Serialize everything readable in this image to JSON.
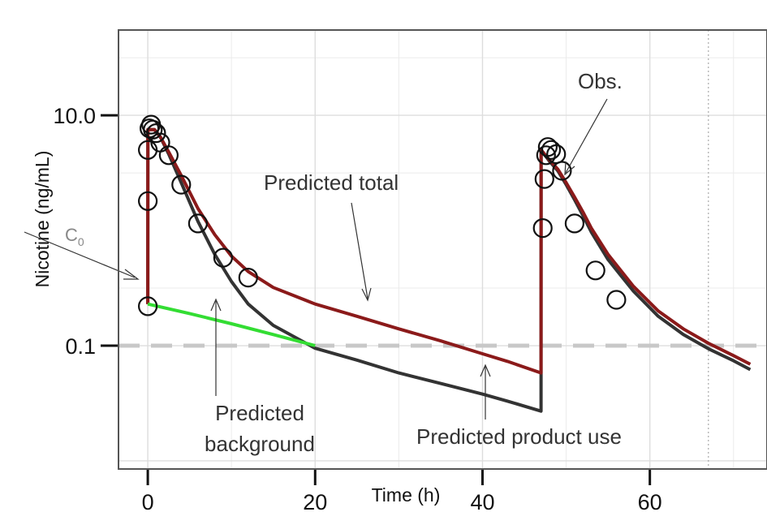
{
  "chart_data": {
    "type": "line",
    "title": "",
    "xlabel": "Time (h)",
    "ylabel": "Nicotine (ng/mL)",
    "x_ticks": [
      0,
      20,
      40,
      60
    ],
    "y_ticks": [
      10.0,
      0.1
    ],
    "y_tick_labels": [
      "10.0",
      "0.1"
    ],
    "y_scale": "log",
    "xlim": [
      -3.5,
      74
    ],
    "ylim": [
      0.0085,
      55
    ],
    "grid": true,
    "reference_line_y": 0.1,
    "vertical_dotted_line_x": 67,
    "series": [
      {
        "name": "Predicted total",
        "color": "#8b1a1a",
        "x": [
          0,
          0.01,
          0.8,
          1.5,
          2.5,
          4,
          6,
          8,
          10,
          12,
          15,
          20,
          25,
          30,
          35,
          40,
          43,
          47,
          47.01,
          48,
          49,
          50,
          51,
          52,
          53,
          55,
          58,
          61,
          64,
          67,
          70,
          72
        ],
        "y": [
          0.23,
          7.5,
          7.5,
          6.5,
          4.8,
          3.0,
          1.55,
          0.92,
          0.6,
          0.44,
          0.32,
          0.23,
          0.18,
          0.14,
          0.11,
          0.085,
          0.073,
          0.058,
          5.0,
          4.1,
          3.4,
          2.6,
          1.95,
          1.45,
          1.05,
          0.62,
          0.33,
          0.2,
          0.14,
          0.105,
          0.082,
          0.069
        ]
      },
      {
        "name": "Predicted product use",
        "color": "#333333",
        "x": [
          0,
          0.01,
          0.8,
          1.5,
          2.5,
          4,
          6,
          8,
          10,
          12,
          15,
          20,
          25,
          30,
          35,
          40,
          43,
          47,
          47.01,
          48,
          49,
          50,
          51,
          52,
          53,
          55,
          58,
          61,
          64,
          67,
          70,
          72
        ],
        "y": [
          0.23,
          7.5,
          7.5,
          6.5,
          4.6,
          2.6,
          1.2,
          0.62,
          0.36,
          0.23,
          0.15,
          0.095,
          0.075,
          0.058,
          0.047,
          0.038,
          0.033,
          0.027,
          5.0,
          4.0,
          3.3,
          2.5,
          1.85,
          1.35,
          0.97,
          0.56,
          0.3,
          0.18,
          0.125,
          0.094,
          0.074,
          0.062
        ]
      },
      {
        "name": "Predicted background",
        "color": "#33dd33",
        "x": [
          0,
          5,
          10,
          15,
          20
        ],
        "y": [
          0.23,
          0.19,
          0.155,
          0.125,
          0.1
        ]
      }
    ],
    "observed": {
      "name": "Obs.",
      "x": [
        0,
        0,
        0,
        0.2,
        0.4,
        0.6,
        1.0,
        1.5,
        2.5,
        4.0,
        6.0,
        9.0,
        12.0,
        47.2,
        47.4,
        47.6,
        47.8,
        48.2,
        48.8,
        49.5,
        51.0,
        53.5,
        56.0
      ],
      "y": [
        0.22,
        1.8,
        5.0,
        7.7,
        8.3,
        7.5,
        7.0,
        5.8,
        4.5,
        2.5,
        1.15,
        0.58,
        0.39,
        1.05,
        2.8,
        4.5,
        5.3,
        5.0,
        4.6,
        3.3,
        1.15,
        0.45,
        0.25
      ]
    },
    "annotations": {
      "c0_label": "C",
      "c0_sub": "0",
      "obs_label": "Obs.",
      "total_label": "Predicted total",
      "background_line1": "Predicted",
      "background_line2": "background",
      "product_label": "Predicted product use"
    }
  }
}
